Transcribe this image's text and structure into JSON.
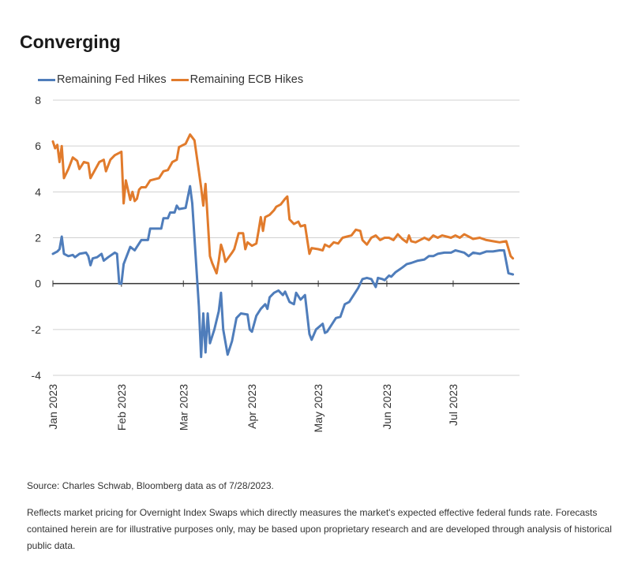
{
  "title": "Converging",
  "footer": {
    "source": "Source: Charles Schwab, Bloomberg data as of 7/28/2023.",
    "note": "Reflects market pricing for Overnight Index Swaps which directly measures the market's expected effective federal funds rate. Forecasts contained herein are for illustrative purposes only, may be based upon proprietary research and are developed through analysis of historical public data."
  },
  "colors": {
    "fed": "#4f7dbb",
    "ecb": "#e17b2c",
    "grid": "#d0d0d0",
    "axis": "#333333",
    "text": "#333333"
  },
  "chart_data": {
    "type": "line",
    "title": "Converging",
    "xlabel": "",
    "ylabel": "",
    "ylim": [
      -4,
      8
    ],
    "yticks": [
      "-4",
      "-2",
      "0",
      "2",
      "4",
      "6",
      "8"
    ],
    "xlim": [
      "2023-01-01",
      "2023-07-31"
    ],
    "xticks": [
      {
        "date": "2023-01-01",
        "label": "Jan 2023"
      },
      {
        "date": "2023-02-01",
        "label": "Feb 2023"
      },
      {
        "date": "2023-03-01",
        "label": "Mar 2023"
      },
      {
        "date": "2023-04-01",
        "label": "Apr 2023"
      },
      {
        "date": "2023-05-01",
        "label": "May 2023"
      },
      {
        "date": "2023-06-01",
        "label": "Jun 2023"
      },
      {
        "date": "2023-07-01",
        "label": "Jul 2023"
      }
    ],
    "grid": true,
    "legend_position": "top-left",
    "series": [
      {
        "name": "Remaining Fed Hikes",
        "color": "#4f7dbb",
        "points": [
          [
            "2023-01-01",
            1.3
          ],
          [
            "2023-01-02",
            1.35
          ],
          [
            "2023-01-03",
            1.4
          ],
          [
            "2023-01-04",
            1.5
          ],
          [
            "2023-01-05",
            2.05
          ],
          [
            "2023-01-06",
            1.3
          ],
          [
            "2023-01-08",
            1.2
          ],
          [
            "2023-01-10",
            1.25
          ],
          [
            "2023-01-11",
            1.15
          ],
          [
            "2023-01-13",
            1.3
          ],
          [
            "2023-01-16",
            1.35
          ],
          [
            "2023-01-17",
            1.2
          ],
          [
            "2023-01-18",
            0.8
          ],
          [
            "2023-01-19",
            1.1
          ],
          [
            "2023-01-21",
            1.15
          ],
          [
            "2023-01-23",
            1.3
          ],
          [
            "2023-01-24",
            1.0
          ],
          [
            "2023-01-26",
            1.15
          ],
          [
            "2023-01-29",
            1.35
          ],
          [
            "2023-01-30",
            1.3
          ],
          [
            "2023-01-31",
            0.0
          ],
          [
            "2023-02-01",
            0.0
          ],
          [
            "2023-02-02",
            0.85
          ],
          [
            "2023-02-05",
            1.6
          ],
          [
            "2023-02-07",
            1.45
          ],
          [
            "2023-02-08",
            1.6
          ],
          [
            "2023-02-10",
            1.9
          ],
          [
            "2023-02-13",
            1.9
          ],
          [
            "2023-02-14",
            2.4
          ],
          [
            "2023-02-16",
            2.4
          ],
          [
            "2023-02-19",
            2.4
          ],
          [
            "2023-02-20",
            2.85
          ],
          [
            "2023-02-22",
            2.85
          ],
          [
            "2023-02-23",
            3.1
          ],
          [
            "2023-02-25",
            3.1
          ],
          [
            "2023-02-26",
            3.4
          ],
          [
            "2023-02-27",
            3.25
          ],
          [
            "2023-03-02",
            3.3
          ],
          [
            "2023-03-04",
            4.25
          ],
          [
            "2023-03-05",
            3.5
          ],
          [
            "2023-03-08",
            -1.0
          ],
          [
            "2023-03-09",
            -3.2
          ],
          [
            "2023-03-10",
            -1.3
          ],
          [
            "2023-03-11",
            -3.0
          ],
          [
            "2023-03-12",
            -1.3
          ],
          [
            "2023-03-13",
            -2.6
          ],
          [
            "2023-03-15",
            -2.0
          ],
          [
            "2023-03-17",
            -1.2
          ],
          [
            "2023-03-18",
            -0.4
          ],
          [
            "2023-03-19",
            -2.0
          ],
          [
            "2023-03-21",
            -3.1
          ],
          [
            "2023-03-23",
            -2.5
          ],
          [
            "2023-03-25",
            -1.5
          ],
          [
            "2023-03-27",
            -1.3
          ],
          [
            "2023-03-30",
            -1.35
          ],
          [
            "2023-03-31",
            -2.0
          ],
          [
            "2023-04-01",
            -2.1
          ],
          [
            "2023-04-03",
            -1.4
          ],
          [
            "2023-04-05",
            -1.1
          ],
          [
            "2023-04-07",
            -0.9
          ],
          [
            "2023-04-08",
            -1.1
          ],
          [
            "2023-04-09",
            -0.6
          ],
          [
            "2023-04-11",
            -0.4
          ],
          [
            "2023-04-13",
            -0.3
          ],
          [
            "2023-04-15",
            -0.5
          ],
          [
            "2023-04-16",
            -0.35
          ],
          [
            "2023-04-18",
            -0.8
          ],
          [
            "2023-04-20",
            -0.9
          ],
          [
            "2023-04-21",
            -0.4
          ],
          [
            "2023-04-23",
            -0.7
          ],
          [
            "2023-04-25",
            -0.5
          ],
          [
            "2023-04-27",
            -2.2
          ],
          [
            "2023-04-28",
            -2.45
          ],
          [
            "2023-04-30",
            -2.0
          ],
          [
            "2023-05-03",
            -1.75
          ],
          [
            "2023-05-04",
            -2.15
          ],
          [
            "2023-05-05",
            -2.1
          ],
          [
            "2023-05-07",
            -1.8
          ],
          [
            "2023-05-09",
            -1.5
          ],
          [
            "2023-05-11",
            -1.45
          ],
          [
            "2023-05-13",
            -0.9
          ],
          [
            "2023-05-15",
            -0.8
          ],
          [
            "2023-05-17",
            -0.5
          ],
          [
            "2023-05-19",
            -0.2
          ],
          [
            "2023-05-21",
            0.2
          ],
          [
            "2023-05-23",
            0.25
          ],
          [
            "2023-05-25",
            0.2
          ],
          [
            "2023-05-27",
            -0.15
          ],
          [
            "2023-05-28",
            0.25
          ],
          [
            "2023-05-30",
            0.2
          ],
          [
            "2023-05-31",
            0.15
          ],
          [
            "2023-06-02",
            0.35
          ],
          [
            "2023-06-03",
            0.3
          ],
          [
            "2023-06-05",
            0.5
          ],
          [
            "2023-06-08",
            0.7
          ],
          [
            "2023-06-10",
            0.85
          ],
          [
            "2023-06-12",
            0.9
          ],
          [
            "2023-06-15",
            1.0
          ],
          [
            "2023-06-18",
            1.05
          ],
          [
            "2023-06-20",
            1.2
          ],
          [
            "2023-06-22",
            1.2
          ],
          [
            "2023-06-24",
            1.3
          ],
          [
            "2023-06-27",
            1.35
          ],
          [
            "2023-06-30",
            1.35
          ],
          [
            "2023-07-02",
            1.45
          ],
          [
            "2023-07-04",
            1.4
          ],
          [
            "2023-07-06",
            1.35
          ],
          [
            "2023-07-08",
            1.2
          ],
          [
            "2023-07-10",
            1.35
          ],
          [
            "2023-07-13",
            1.3
          ],
          [
            "2023-07-16",
            1.4
          ],
          [
            "2023-07-19",
            1.4
          ],
          [
            "2023-07-22",
            1.45
          ],
          [
            "2023-07-24",
            1.45
          ],
          [
            "2023-07-26",
            0.45
          ],
          [
            "2023-07-28",
            0.4
          ]
        ]
      },
      {
        "name": "Remaining ECB Hikes",
        "color": "#e17b2c",
        "points": [
          [
            "2023-01-01",
            6.2
          ],
          [
            "2023-01-02",
            5.9
          ],
          [
            "2023-01-03",
            6.05
          ],
          [
            "2023-01-04",
            5.3
          ],
          [
            "2023-01-05",
            6.0
          ],
          [
            "2023-01-06",
            4.6
          ],
          [
            "2023-01-08",
            5.0
          ],
          [
            "2023-01-10",
            5.5
          ],
          [
            "2023-01-12",
            5.35
          ],
          [
            "2023-01-13",
            5.0
          ],
          [
            "2023-01-15",
            5.3
          ],
          [
            "2023-01-17",
            5.25
          ],
          [
            "2023-01-18",
            4.6
          ],
          [
            "2023-01-20",
            4.95
          ],
          [
            "2023-01-22",
            5.3
          ],
          [
            "2023-01-24",
            5.4
          ],
          [
            "2023-01-25",
            4.9
          ],
          [
            "2023-01-27",
            5.4
          ],
          [
            "2023-01-29",
            5.6
          ],
          [
            "2023-01-31",
            5.7
          ],
          [
            "2023-02-01",
            5.75
          ],
          [
            "2023-02-02",
            3.5
          ],
          [
            "2023-02-03",
            4.5
          ],
          [
            "2023-02-05",
            3.65
          ],
          [
            "2023-02-06",
            4.0
          ],
          [
            "2023-02-07",
            3.6
          ],
          [
            "2023-02-08",
            3.7
          ],
          [
            "2023-02-09",
            4.1
          ],
          [
            "2023-02-10",
            4.2
          ],
          [
            "2023-02-12",
            4.2
          ],
          [
            "2023-02-14",
            4.5
          ],
          [
            "2023-02-16",
            4.55
          ],
          [
            "2023-02-18",
            4.6
          ],
          [
            "2023-02-20",
            4.9
          ],
          [
            "2023-02-22",
            4.95
          ],
          [
            "2023-02-24",
            5.3
          ],
          [
            "2023-02-26",
            5.4
          ],
          [
            "2023-02-27",
            5.95
          ],
          [
            "2023-03-01",
            6.05
          ],
          [
            "2023-03-02",
            6.1
          ],
          [
            "2023-03-04",
            6.5
          ],
          [
            "2023-03-06",
            6.25
          ],
          [
            "2023-03-08",
            4.9
          ],
          [
            "2023-03-09",
            4.2
          ],
          [
            "2023-03-10",
            3.4
          ],
          [
            "2023-03-11",
            4.35
          ],
          [
            "2023-03-13",
            1.2
          ],
          [
            "2023-03-14",
            0.9
          ],
          [
            "2023-03-16",
            0.45
          ],
          [
            "2023-03-17",
            1.0
          ],
          [
            "2023-03-18",
            1.7
          ],
          [
            "2023-03-19",
            1.4
          ],
          [
            "2023-03-20",
            0.95
          ],
          [
            "2023-03-23",
            1.35
          ],
          [
            "2023-03-24",
            1.5
          ],
          [
            "2023-03-26",
            2.2
          ],
          [
            "2023-03-28",
            2.2
          ],
          [
            "2023-03-29",
            1.5
          ],
          [
            "2023-03-30",
            1.8
          ],
          [
            "2023-04-01",
            1.65
          ],
          [
            "2023-04-03",
            1.75
          ],
          [
            "2023-04-04",
            2.3
          ],
          [
            "2023-04-05",
            2.9
          ],
          [
            "2023-04-06",
            2.3
          ],
          [
            "2023-04-07",
            2.9
          ],
          [
            "2023-04-09",
            3.0
          ],
          [
            "2023-04-11",
            3.2
          ],
          [
            "2023-04-12",
            3.35
          ],
          [
            "2023-04-14",
            3.45
          ],
          [
            "2023-04-16",
            3.7
          ],
          [
            "2023-04-17",
            3.8
          ],
          [
            "2023-04-18",
            2.8
          ],
          [
            "2023-04-20",
            2.6
          ],
          [
            "2023-04-22",
            2.7
          ],
          [
            "2023-04-23",
            2.5
          ],
          [
            "2023-04-25",
            2.55
          ],
          [
            "2023-04-27",
            1.3
          ],
          [
            "2023-04-28",
            1.55
          ],
          [
            "2023-05-01",
            1.5
          ],
          [
            "2023-05-03",
            1.45
          ],
          [
            "2023-05-04",
            1.7
          ],
          [
            "2023-05-06",
            1.6
          ],
          [
            "2023-05-08",
            1.8
          ],
          [
            "2023-05-10",
            1.75
          ],
          [
            "2023-05-12",
            2.0
          ],
          [
            "2023-05-14",
            2.05
          ],
          [
            "2023-05-16",
            2.1
          ],
          [
            "2023-05-18",
            2.35
          ],
          [
            "2023-05-20",
            2.3
          ],
          [
            "2023-05-21",
            1.9
          ],
          [
            "2023-05-23",
            1.7
          ],
          [
            "2023-05-25",
            2.0
          ],
          [
            "2023-05-27",
            2.1
          ],
          [
            "2023-05-29",
            1.9
          ],
          [
            "2023-05-31",
            2.0
          ],
          [
            "2023-06-02",
            2.0
          ],
          [
            "2023-06-04",
            1.9
          ],
          [
            "2023-06-06",
            2.15
          ],
          [
            "2023-06-08",
            1.95
          ],
          [
            "2023-06-10",
            1.8
          ],
          [
            "2023-06-11",
            2.1
          ],
          [
            "2023-06-12",
            1.85
          ],
          [
            "2023-06-14",
            1.8
          ],
          [
            "2023-06-16",
            1.9
          ],
          [
            "2023-06-18",
            2.0
          ],
          [
            "2023-06-20",
            1.9
          ],
          [
            "2023-06-22",
            2.1
          ],
          [
            "2023-06-24",
            2.0
          ],
          [
            "2023-06-26",
            2.1
          ],
          [
            "2023-06-28",
            2.05
          ],
          [
            "2023-06-30",
            2.0
          ],
          [
            "2023-07-02",
            2.1
          ],
          [
            "2023-07-04",
            2.0
          ],
          [
            "2023-07-06",
            2.15
          ],
          [
            "2023-07-08",
            2.05
          ],
          [
            "2023-07-10",
            1.95
          ],
          [
            "2023-07-13",
            2.0
          ],
          [
            "2023-07-16",
            1.9
          ],
          [
            "2023-07-19",
            1.85
          ],
          [
            "2023-07-22",
            1.8
          ],
          [
            "2023-07-25",
            1.85
          ],
          [
            "2023-07-27",
            1.2
          ],
          [
            "2023-07-28",
            1.1
          ]
        ]
      }
    ]
  }
}
